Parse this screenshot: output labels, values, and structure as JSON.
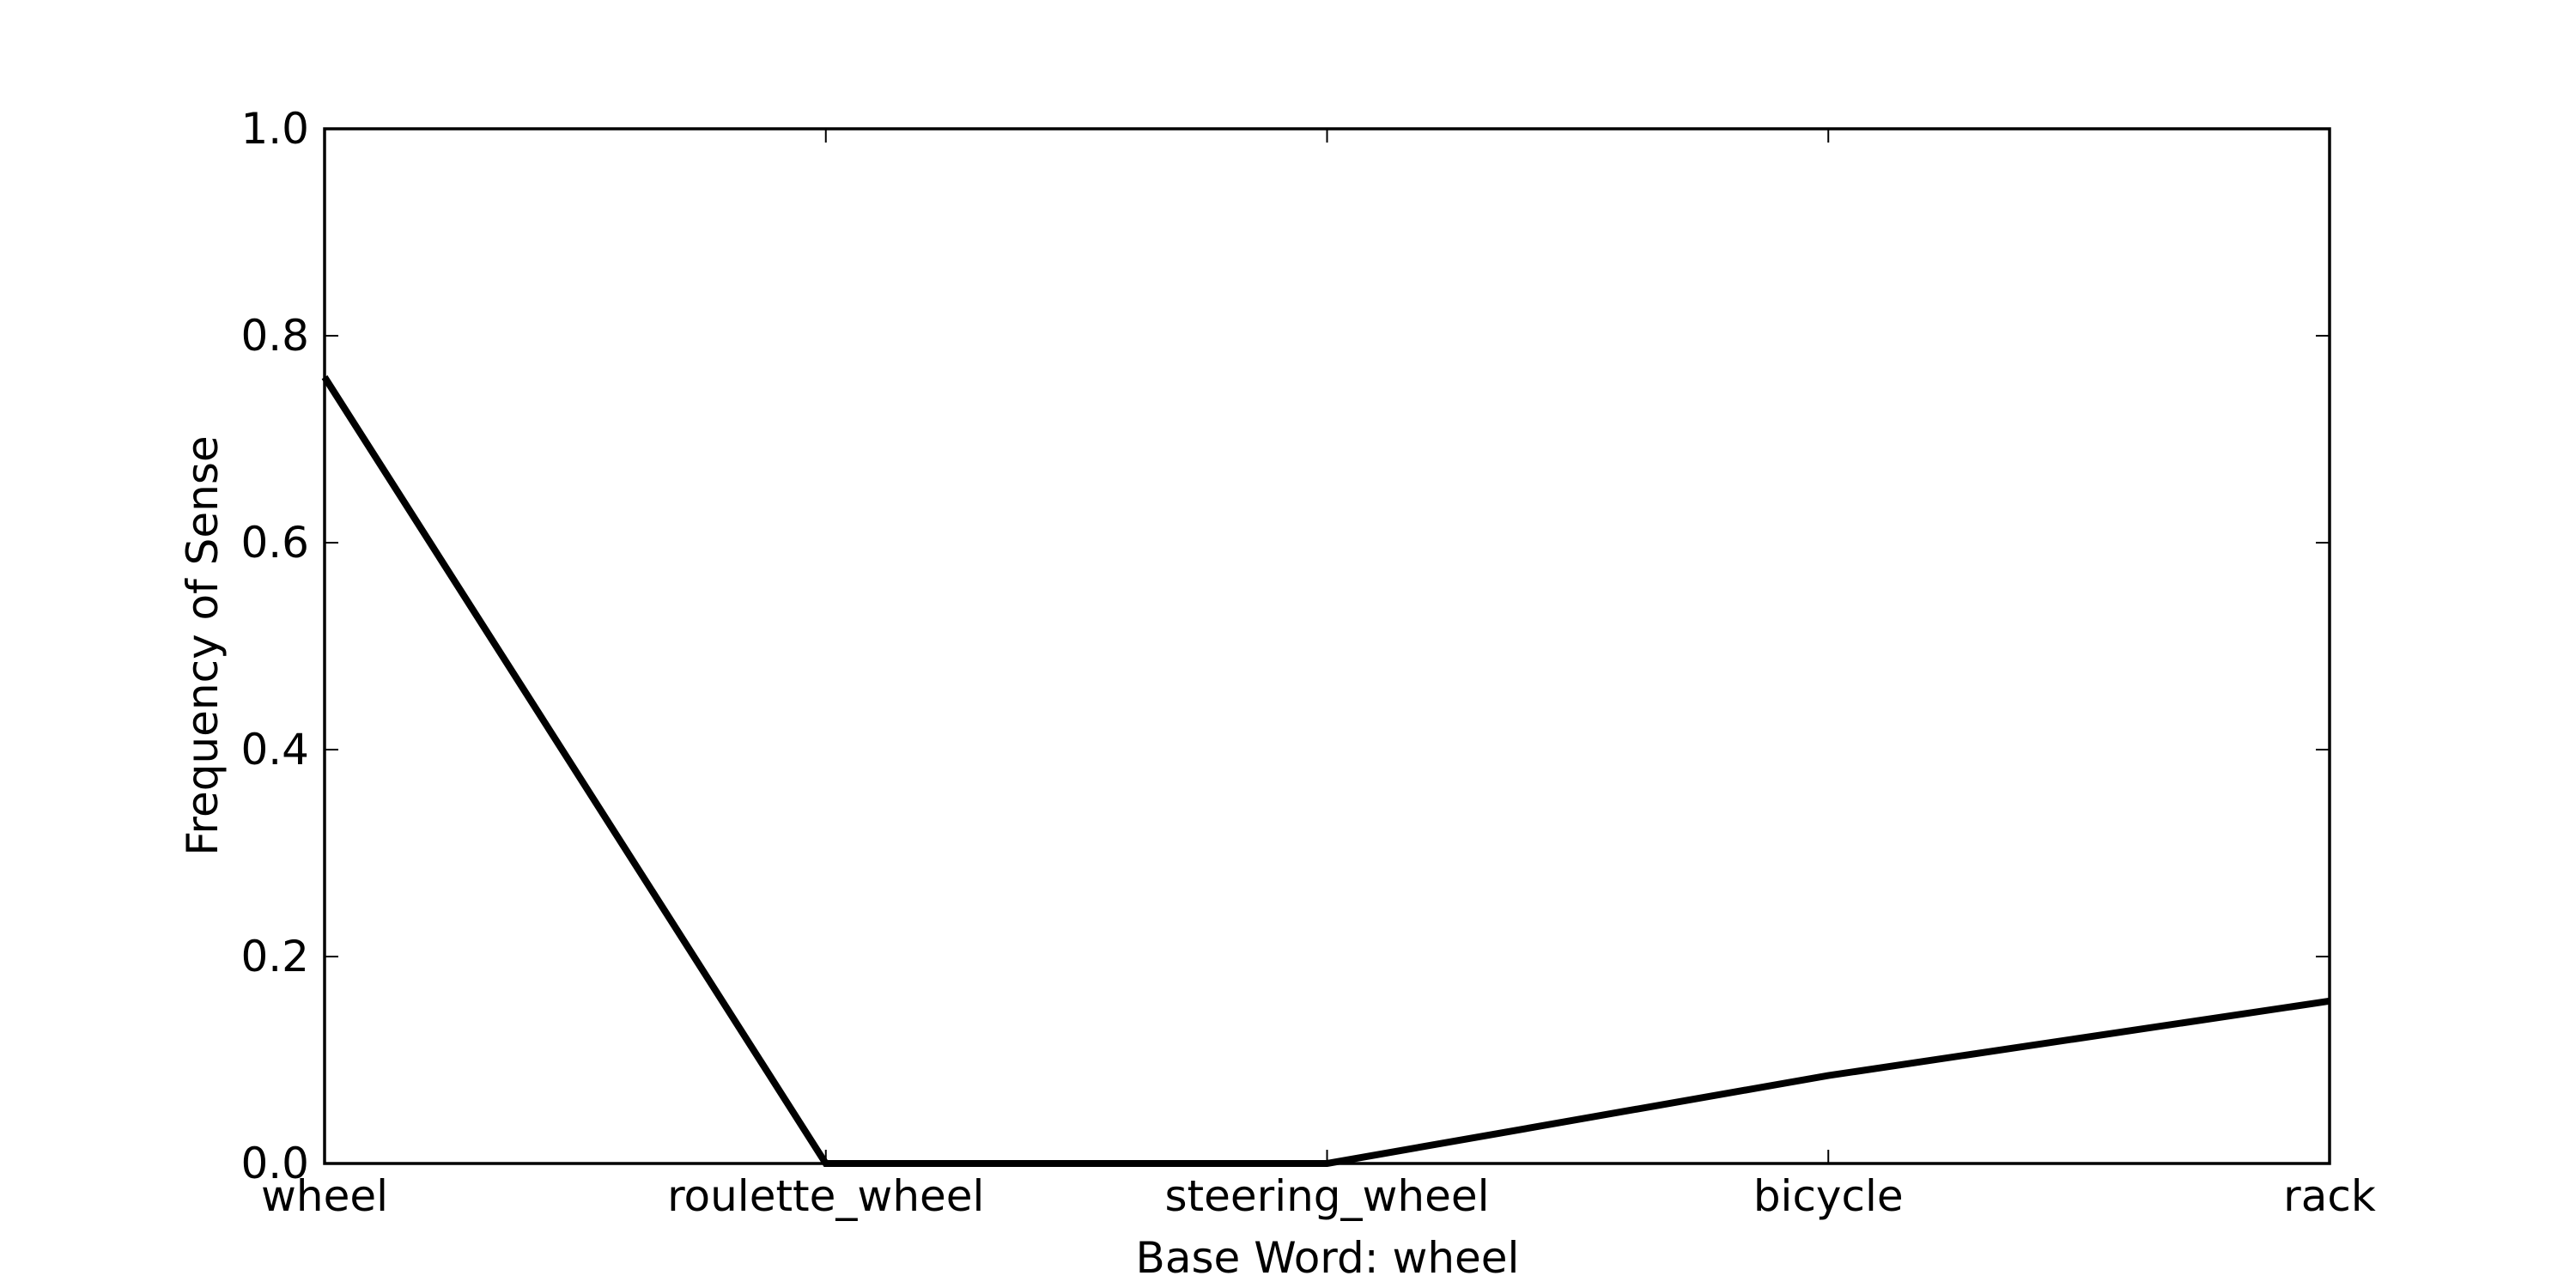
{
  "chart_data": {
    "type": "line",
    "categories": [
      "wheel",
      "roulette_wheel",
      "steering_wheel",
      "bicycle",
      "rack"
    ],
    "series": [
      {
        "values": [
          0.76,
          0.0,
          0.0,
          0.085,
          0.157
        ]
      }
    ],
    "xlabel": "Base Word: wheel",
    "ylabel": "Frequency of Sense",
    "ylim": [
      0.0,
      1.0
    ],
    "yticks": [
      "0.0",
      "0.2",
      "0.4",
      "0.6",
      "0.8",
      "1.0"
    ],
    "grid": false,
    "line_color": "#000000"
  }
}
